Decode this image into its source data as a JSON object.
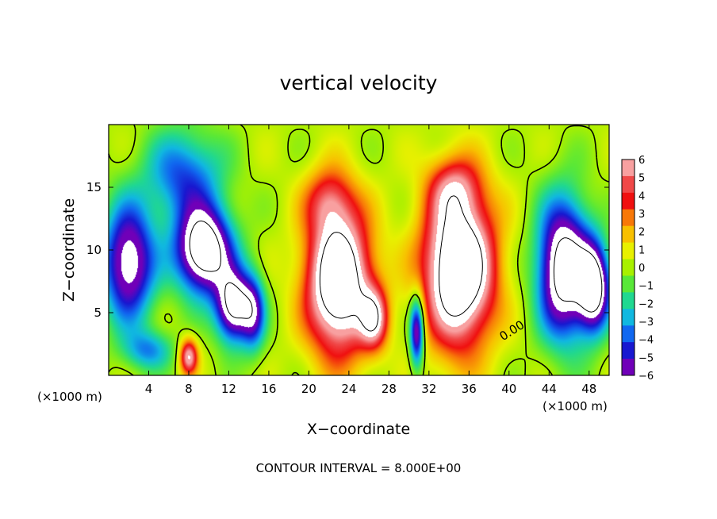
{
  "chart_data": {
    "type": "heatmap",
    "title": "vertical velocity",
    "xlabel": "X−coordinate",
    "ylabel": "Z−coordinate",
    "x_units": "(×1000 m)",
    "x_units_right": "(×1000 m)",
    "xlim": [
      0,
      50
    ],
    "ylim": [
      0,
      20
    ],
    "x_ticks": [
      4,
      8,
      12,
      16,
      20,
      24,
      28,
      32,
      36,
      40,
      44,
      48
    ],
    "y_ticks": [
      5,
      10,
      15
    ],
    "colorbar": {
      "min": -6,
      "max": 6,
      "tick_labels": [
        "6",
        "5",
        "4",
        "3",
        "2",
        "1",
        "0",
        "−1",
        "−2",
        "−3",
        "−4",
        "−5",
        "−6"
      ],
      "colors": [
        "#f8a0a0",
        "#f04848",
        "#f01010",
        "#f87808",
        "#f8c000",
        "#e8f000",
        "#a8f000",
        "#58e838",
        "#20d890",
        "#10b8e0",
        "#1068f0",
        "#1818d0",
        "#7000b8"
      ]
    },
    "footer": "CONTOUR INTERVAL = 8.000E+00",
    "contour_label": "0.00",
    "background_level": 0.2,
    "features": [
      {
        "x": 9.5,
        "z": 10.0,
        "sx": 2.8,
        "sz": 3.4,
        "amp": -10.5
      },
      {
        "x": 7.5,
        "z": 16.0,
        "sx": 3.8,
        "sz": 3.6,
        "amp": -4.5
      },
      {
        "x": 2.0,
        "z": 9.0,
        "sx": 2.6,
        "sz": 4.6,
        "amp": -8.0
      },
      {
        "x": 12.5,
        "z": 5.5,
        "sx": 1.8,
        "sz": 2.8,
        "amp": -9.0
      },
      {
        "x": 14.5,
        "z": 5.0,
        "sx": 1.2,
        "sz": 3.0,
        "amp": -5.0
      },
      {
        "x": 23.0,
        "z": 7.5,
        "sx": 3.2,
        "sz": 5.6,
        "amp": 11.0
      },
      {
        "x": 26.5,
        "z": 4.5,
        "sx": 1.4,
        "sz": 2.4,
        "amp": 6.0
      },
      {
        "x": 35.0,
        "z": 8.5,
        "sx": 3.5,
        "sz": 6.0,
        "amp": 11.5
      },
      {
        "x": 30.8,
        "z": 3.5,
        "sx": 0.7,
        "sz": 2.8,
        "amp": -7.5
      },
      {
        "x": 45.5,
        "z": 8.5,
        "sx": 2.6,
        "sz": 5.4,
        "amp": -10.0
      },
      {
        "x": 48.5,
        "z": 7.0,
        "sx": 1.6,
        "sz": 3.4,
        "amp": -9.0
      },
      {
        "x": 8.0,
        "z": 1.5,
        "sx": 0.9,
        "sz": 1.4,
        "amp": 6.5
      },
      {
        "x": 4.0,
        "z": 2.0,
        "sx": 2.5,
        "sz": 1.6,
        "amp": -3.5
      },
      {
        "x": 22.0,
        "z": 14.0,
        "sx": 2.4,
        "sz": 2.6,
        "amp": 3.5
      },
      {
        "x": 34.5,
        "z": 15.0,
        "sx": 2.6,
        "sz": 2.4,
        "amp": 3.5
      }
    ]
  }
}
